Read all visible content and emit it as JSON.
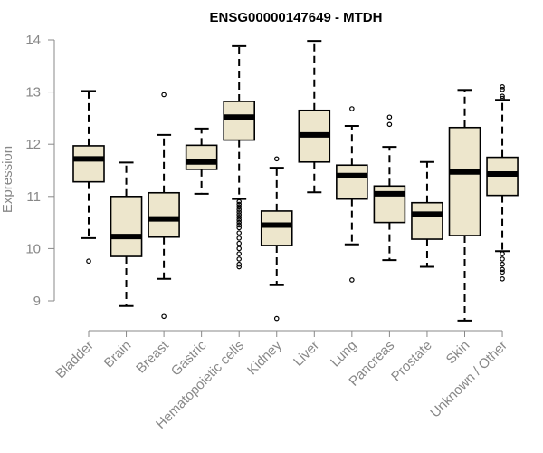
{
  "chart_data": {
    "type": "box",
    "title": "ENSG00000147649 - MTDH",
    "ylabel": "Expression",
    "xlabel": "",
    "ylim": [
      8.5,
      14.1
    ],
    "yticks": [
      9,
      10,
      11,
      12,
      13,
      14
    ],
    "grid": false,
    "legend": "none",
    "box_fill": "#ede6cc",
    "categories": [
      "Bladder",
      "Brain",
      "Breast",
      "Gastric",
      "Hematopoietic cells",
      "Kidney",
      "Liver",
      "Lung",
      "Pancreas",
      "Prostate",
      "Skin",
      "Unknown / Other"
    ],
    "series": [
      {
        "category": "Bladder",
        "whisker_low": 10.2,
        "q1": 11.28,
        "median": 11.72,
        "q3": 11.97,
        "whisker_high": 13.02,
        "outliers": [
          9.76
        ]
      },
      {
        "category": "Brain",
        "whisker_low": 8.9,
        "q1": 9.85,
        "median": 10.23,
        "q3": 11.0,
        "whisker_high": 11.65,
        "outliers": []
      },
      {
        "category": "Breast",
        "whisker_low": 9.42,
        "q1": 10.22,
        "median": 10.57,
        "q3": 11.07,
        "whisker_high": 12.18,
        "outliers": [
          12.95,
          8.7
        ]
      },
      {
        "category": "Gastric",
        "whisker_low": 11.05,
        "q1": 11.52,
        "median": 11.66,
        "q3": 11.98,
        "whisker_high": 12.3,
        "outliers": []
      },
      {
        "category": "Hematopoietic cells",
        "whisker_low": 10.95,
        "q1": 12.08,
        "median": 12.52,
        "q3": 12.82,
        "whisker_high": 13.88,
        "outliers": [
          10.9,
          10.85,
          10.8,
          10.75,
          10.7,
          10.65,
          10.6,
          10.55,
          10.5,
          10.45,
          10.4,
          10.3,
          10.2,
          10.1,
          10.0,
          9.9,
          9.8,
          9.7,
          9.65
        ]
      },
      {
        "category": "Kidney",
        "whisker_low": 9.3,
        "q1": 10.06,
        "median": 10.45,
        "q3": 10.72,
        "whisker_high": 11.55,
        "outliers": [
          11.72,
          8.66
        ]
      },
      {
        "category": "Liver",
        "whisker_low": 11.08,
        "q1": 11.66,
        "median": 12.18,
        "q3": 12.65,
        "whisker_high": 13.98,
        "outliers": []
      },
      {
        "category": "Lung",
        "whisker_low": 10.08,
        "q1": 10.95,
        "median": 11.4,
        "q3": 11.6,
        "whisker_high": 12.35,
        "outliers": [
          12.68,
          9.4
        ]
      },
      {
        "category": "Pancreas",
        "whisker_low": 9.78,
        "q1": 10.5,
        "median": 11.05,
        "q3": 11.2,
        "whisker_high": 11.95,
        "outliers": [
          12.52,
          12.38
        ]
      },
      {
        "category": "Prostate",
        "whisker_low": 9.65,
        "q1": 10.18,
        "median": 10.66,
        "q3": 10.88,
        "whisker_high": 11.66,
        "outliers": []
      },
      {
        "category": "Skin",
        "whisker_low": 8.62,
        "q1": 10.25,
        "median": 11.47,
        "q3": 12.32,
        "whisker_high": 13.04,
        "outliers": []
      },
      {
        "category": "Unknown / Other",
        "whisker_low": 9.95,
        "q1": 11.02,
        "median": 11.43,
        "q3": 11.75,
        "whisker_high": 12.85,
        "outliers": [
          13.1,
          13.05,
          12.92,
          12.88,
          9.9,
          9.8,
          9.7,
          9.6,
          9.55,
          9.42
        ]
      }
    ]
  }
}
